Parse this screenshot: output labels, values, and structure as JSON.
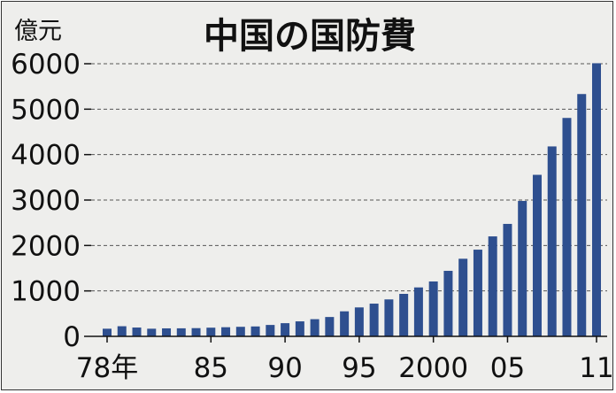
{
  "chart_data": {
    "type": "bar",
    "title": "中国の国防費",
    "ylabel": "億元",
    "xlabel": "",
    "ylim": [
      0,
      6000
    ],
    "yticks": [
      0,
      1000,
      2000,
      3000,
      4000,
      5000,
      6000
    ],
    "grid": true,
    "bar_color": "#2e4f8f",
    "categories": [
      "1978",
      "1979",
      "1980",
      "1981",
      "1982",
      "1983",
      "1984",
      "1985",
      "1986",
      "1987",
      "1988",
      "1989",
      "1990",
      "1991",
      "1992",
      "1993",
      "1994",
      "1995",
      "1996",
      "1997",
      "1998",
      "1999",
      "2000",
      "2001",
      "2002",
      "2003",
      "2004",
      "2005",
      "2006",
      "2007",
      "2008",
      "2009",
      "2010",
      "2011"
    ],
    "values": [
      168,
      223,
      194,
      168,
      176,
      177,
      181,
      191,
      201,
      210,
      218,
      251,
      290,
      330,
      378,
      426,
      551,
      637,
      720,
      813,
      935,
      1077,
      1208,
      1442,
      1708,
      1908,
      2200,
      2475,
      2980,
      3555,
      4180,
      4807,
      5333,
      6011
    ],
    "xtick_labels": [
      {
        "index": 0,
        "label": "78年"
      },
      {
        "index": 7,
        "label": "85"
      },
      {
        "index": 12,
        "label": "90"
      },
      {
        "index": 17,
        "label": "95"
      },
      {
        "index": 22,
        "label": "2000"
      },
      {
        "index": 27,
        "label": "05"
      },
      {
        "index": 33,
        "label": "11"
      }
    ]
  }
}
